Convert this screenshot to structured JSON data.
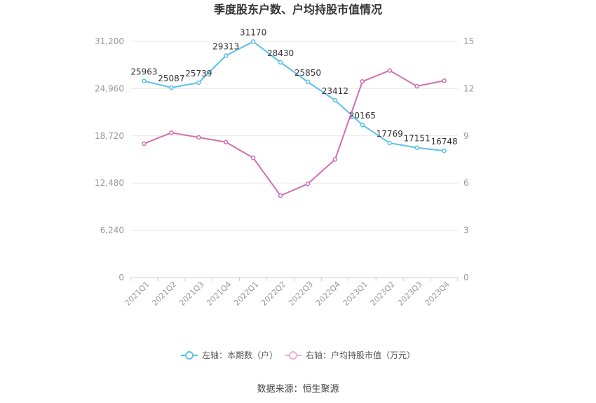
{
  "chart_data": {
    "type": "line",
    "title": "季度股东户数、户均持股市值情况",
    "categories": [
      "2021Q1",
      "2021Q2",
      "2021Q3",
      "2021Q4",
      "2022Q1",
      "2022Q2",
      "2022Q3",
      "2022Q4",
      "2023Q1",
      "2023Q2",
      "2023Q3",
      "2023Q4"
    ],
    "y_left": {
      "ticks": [
        "0",
        "6,240",
        "12,480",
        "18,720",
        "24,960",
        "31,200"
      ],
      "range": [
        0,
        31200
      ]
    },
    "y_right": {
      "ticks": [
        "0",
        "3",
        "6",
        "9",
        "12",
        "15"
      ],
      "range": [
        0,
        15
      ]
    },
    "series": [
      {
        "name": "左轴：本期数（户）",
        "axis": "left",
        "color": "#5bc0eb",
        "values": [
          25963,
          25087,
          25739,
          29313,
          31170,
          28430,
          25850,
          23412,
          20165,
          17769,
          17151,
          16748
        ],
        "labels": [
          "25963",
          "25087",
          "25739",
          "29313",
          "31170",
          "28430",
          "25850",
          "23412",
          "20165",
          "17769",
          "17151",
          "16748"
        ]
      },
      {
        "name": "右轴：户均持股市值（万元）",
        "axis": "right",
        "color": "#d070b0",
        "values": [
          8.5,
          9.2,
          8.9,
          8.6,
          7.6,
          5.2,
          5.95,
          7.5,
          12.45,
          13.15,
          12.15,
          12.5
        ]
      }
    ],
    "grid": true,
    "legend": "bottom-center"
  },
  "footer": {
    "source": "数据来源：恒生聚源"
  }
}
